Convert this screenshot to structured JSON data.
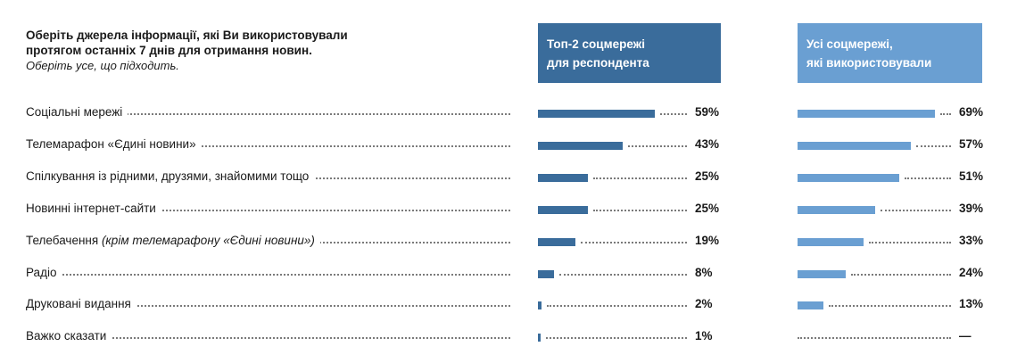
{
  "question": {
    "text_line1": "Оберіть джерела інформації, які Ви використовували",
    "text_line2": "протягом останніх 7 днів для отримання новин.",
    "hint": "Оберіть усе, що підходить."
  },
  "colors": {
    "dark_series": "#3a6c9b",
    "light_series": "#6a9fd2"
  },
  "chart_data": {
    "type": "bar",
    "orientation": "horizontal",
    "categories": [
      "Соціальні мережі",
      "Телемарафон «Єдині новини»",
      "Спілкування із рідними, друзями, знайомими тощо",
      "Новинні інтернет-сайти",
      "Телебачення",
      "Радіо",
      "Друковані видання",
      "Важко сказати"
    ],
    "category_notes": [
      "",
      "",
      "",
      "",
      "(крім телемарафону «Єдині новини»)",
      "",
      "",
      ""
    ],
    "series": [
      {
        "name_line1": "Топ-2 соцмережі",
        "name_line2": "для респондента",
        "values": [
          59,
          43,
          25,
          25,
          19,
          8,
          2,
          1
        ],
        "labels": [
          "59%",
          "43%",
          "25%",
          "25%",
          "19%",
          "8%",
          "2%",
          "1%"
        ]
      },
      {
        "name_line1": "Усі соцмережі,",
        "name_line2": "які використовували",
        "values": [
          69,
          57,
          51,
          39,
          33,
          24,
          13,
          null
        ],
        "labels": [
          "69%",
          "57%",
          "51%",
          "39%",
          "33%",
          "24%",
          "13%",
          "—"
        ]
      }
    ],
    "unit": "%"
  }
}
